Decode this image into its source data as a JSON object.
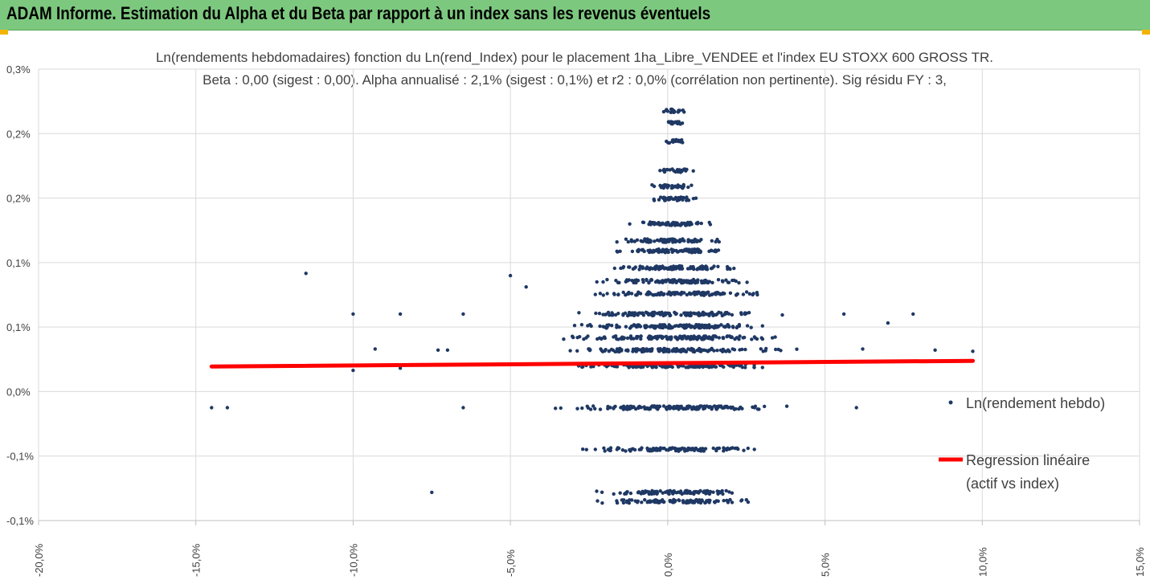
{
  "header": {
    "title": "ADAM Informe. Estimation du Alpha et du Beta par rapport à un index sans les revenus éventuels"
  },
  "colors": {
    "header_bg": "#7dc87f",
    "points": "#1f3864",
    "regression": "#ff0000",
    "grid": "#d9d9d9",
    "accent": "#f2b400"
  },
  "chart_data": {
    "type": "scatter",
    "title_line1": "Ln(rendements hebdomadaires) fonction du Ln(rend_Index) pour le placement 1ha_Libre_VENDEE et l'index EU STOXX 600 GROSS TR.",
    "title_line2": "Beta : 0,00 (sigest : 0,00). Alpha annualisé : 2,1% (sigest : 0,1%) et r2 : 0,0% (corrélation non pertinente). Sig résidu FY : 3,",
    "xlim": [
      -0.2,
      0.15
    ],
    "ylim": [
      -0.001,
      0.003
    ],
    "x_ticks": [
      "-20,0%",
      "-15,0%",
      "-10,0%",
      "-5,0%",
      "0,0%",
      "5,0%",
      "10,0%",
      "15,0%"
    ],
    "y_ticks": [
      "-0,1%",
      "-0,1%",
      "0,0%",
      "0,1%",
      "0,1%",
      "0,2%",
      "0,2%",
      "0,3%"
    ],
    "grid": true,
    "legend_position": "right",
    "series": [
      {
        "name": "Ln(rendement hebdo)",
        "type": "scatter",
        "y_levels": [
          -0.00083,
          -0.00075,
          -0.00037,
          0.0,
          0.00037,
          0.00051,
          0.00062,
          0.00072,
          0.00083,
          0.00101,
          0.00112,
          0.00124,
          0.00139,
          0.00148,
          0.00163,
          0.00185,
          0.00196,
          0.0021,
          0.00236,
          0.00252,
          0.00263
        ],
        "y_level_spread": [
          0.62,
          0.62,
          0.75,
          1.0,
          0.9,
          0.95,
          1.0,
          0.9,
          0.85,
          0.75,
          0.7,
          0.65,
          0.55,
          0.5,
          0.4,
          0.25,
          0.2,
          0.15,
          0.1,
          0.12,
          0.1
        ],
        "outliers": [
          [
            -0.145,
            0.0
          ],
          [
            -0.14,
            0.0
          ],
          [
            -0.115,
            0.00119
          ],
          [
            -0.1,
            0.00083
          ],
          [
            -0.1,
            0.00033
          ],
          [
            -0.093,
            0.00052
          ],
          [
            -0.085,
            0.00083
          ],
          [
            -0.085,
            0.00035
          ],
          [
            -0.075,
            -0.00075
          ],
          [
            -0.073,
            0.00051
          ],
          [
            -0.07,
            0.00051
          ],
          [
            -0.065,
            0.0
          ],
          [
            -0.065,
            0.00083
          ],
          [
            -0.05,
            0.00117
          ],
          [
            -0.045,
            -0.00163
          ],
          [
            -0.045,
            0.00107
          ],
          [
            0.085,
            0.00051
          ],
          [
            0.097,
            0.0005
          ],
          [
            0.078,
            0.00083
          ],
          [
            0.07,
            0.00075
          ],
          [
            0.062,
            0.00052
          ],
          [
            0.06,
            0.0
          ],
          [
            0.056,
            0.00083
          ]
        ]
      },
      {
        "name": "Regression linéaire (actif vs index)",
        "type": "line",
        "x": [
          -0.145,
          0.097
        ],
        "y": [
          0.000365,
          0.000415
        ]
      }
    ]
  },
  "legend": {
    "scatter_label": "Ln(rendement hebdo)",
    "line_label_1": "Regression linéaire",
    "line_label_2": "(actif vs index)"
  }
}
